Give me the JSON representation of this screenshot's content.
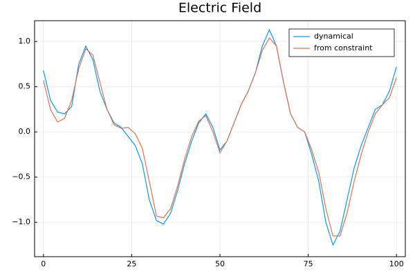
{
  "chart_data": {
    "type": "line",
    "title": "Electric Field",
    "x": [
      0,
      2,
      4,
      6,
      8,
      10,
      12,
      14,
      16,
      18,
      20,
      22,
      24,
      26,
      28,
      30,
      32,
      34,
      36,
      38,
      40,
      42,
      44,
      46,
      48,
      50,
      52,
      54,
      56,
      58,
      60,
      62,
      64,
      66,
      68,
      70,
      72,
      74,
      76,
      78,
      80,
      82,
      84,
      86,
      88,
      90,
      92,
      94,
      96,
      98,
      100
    ],
    "series": [
      {
        "name": "dynamical",
        "color": "#009af9",
        "values": [
          0.68,
          0.35,
          0.22,
          0.2,
          0.28,
          0.75,
          0.95,
          0.8,
          0.45,
          0.25,
          0.1,
          0.05,
          -0.05,
          -0.15,
          -0.35,
          -0.75,
          -0.98,
          -1.02,
          -0.9,
          -0.65,
          -0.35,
          -0.1,
          0.1,
          0.2,
          0.05,
          -0.2,
          -0.1,
          0.1,
          0.3,
          0.45,
          0.65,
          0.95,
          1.13,
          0.95,
          0.55,
          0.2,
          0.05,
          0.0,
          -0.25,
          -0.55,
          -1.0,
          -1.25,
          -1.1,
          -0.75,
          -0.4,
          -0.15,
          0.05,
          0.25,
          0.3,
          0.45,
          0.72
        ]
      },
      {
        "name": "from constraint",
        "color": "#e26f46",
        "values": [
          0.57,
          0.25,
          0.11,
          0.15,
          0.35,
          0.7,
          0.92,
          0.85,
          0.55,
          0.25,
          0.08,
          0.04,
          0.05,
          -0.02,
          -0.18,
          -0.55,
          -0.93,
          -0.95,
          -0.85,
          -0.6,
          -0.3,
          -0.05,
          0.12,
          0.18,
          0.0,
          -0.23,
          -0.1,
          0.1,
          0.3,
          0.45,
          0.65,
          0.9,
          1.04,
          0.95,
          0.55,
          0.2,
          0.05,
          0.0,
          -0.2,
          -0.45,
          -0.85,
          -1.15,
          -1.15,
          -0.9,
          -0.55,
          -0.25,
          0.0,
          0.2,
          0.3,
          0.38,
          0.6
        ]
      }
    ],
    "xlim": [
      -2.5,
      102.5
    ],
    "xticks": [
      0,
      25,
      50,
      75,
      100
    ],
    "ylim": [
      -1.38,
      1.23
    ],
    "yticks": [
      {
        "value": -1.0,
        "label": "−1.0"
      },
      {
        "value": -0.5,
        "label": "−0.5"
      },
      {
        "value": 0.0,
        "label": "0.0"
      },
      0.5,
      {
        "value": 1.0,
        "label": "1.0"
      }
    ],
    "grid": true,
    "legend": "top-right"
  }
}
